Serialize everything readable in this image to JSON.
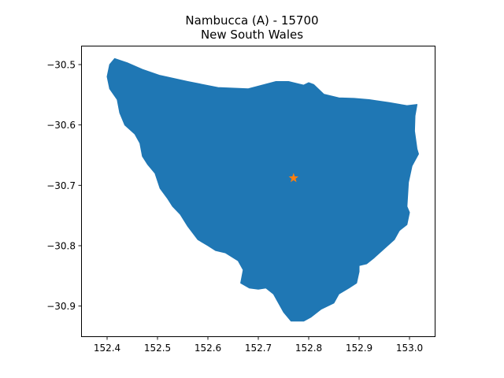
{
  "title": {
    "line1": "Nambucca (A) - 15700",
    "line2": "New South Wales"
  },
  "colors": {
    "region_fill": "#1f77b4",
    "centroid_marker": "#ff7f0e",
    "axes": "#000000"
  },
  "chart_data": {
    "type": "map",
    "xlim": [
      152.35,
      153.05
    ],
    "ylim": [
      -30.95,
      -30.47
    ],
    "x_ticks": [
      152.4,
      152.5,
      152.6,
      152.7,
      152.8,
      152.9,
      153.0
    ],
    "x_tick_labels": [
      "152.4",
      "152.5",
      "152.6",
      "152.7",
      "152.8",
      "152.9",
      "153.0"
    ],
    "y_ticks": [
      -30.5,
      -30.6,
      -30.7,
      -30.8,
      -30.9
    ],
    "y_tick_labels": [
      "−30.5",
      "−30.6",
      "−30.7",
      "−30.8",
      "−30.9"
    ],
    "grid": false,
    "centroid": {
      "lon": 152.77,
      "lat": -30.688,
      "marker": "star"
    },
    "boundary": [
      [
        152.405,
        -30.5
      ],
      [
        152.415,
        -30.49
      ],
      [
        152.44,
        -30.497
      ],
      [
        152.47,
        -30.508
      ],
      [
        152.505,
        -30.518
      ],
      [
        152.56,
        -30.528
      ],
      [
        152.62,
        -30.538
      ],
      [
        152.68,
        -30.54
      ],
      [
        152.735,
        -30.528
      ],
      [
        152.76,
        -30.528
      ],
      [
        152.79,
        -30.534
      ],
      [
        152.8,
        -30.53
      ],
      [
        152.81,
        -30.533
      ],
      [
        152.83,
        -30.549
      ],
      [
        152.86,
        -30.555
      ],
      [
        152.89,
        -30.556
      ],
      [
        152.92,
        -30.558
      ],
      [
        152.96,
        -30.563
      ],
      [
        152.995,
        -30.568
      ],
      [
        153.015,
        -30.566
      ],
      [
        153.011,
        -30.585
      ],
      [
        153.01,
        -30.61
      ],
      [
        153.015,
        -30.64
      ],
      [
        153.018,
        -30.648
      ],
      [
        153.005,
        -30.668
      ],
      [
        152.998,
        -30.695
      ],
      [
        152.995,
        -30.735
      ],
      [
        153.0,
        -30.745
      ],
      [
        152.995,
        -30.765
      ],
      [
        152.98,
        -30.775
      ],
      [
        152.97,
        -30.79
      ],
      [
        152.95,
        -30.805
      ],
      [
        152.93,
        -30.82
      ],
      [
        152.915,
        -30.83
      ],
      [
        152.9,
        -30.833
      ],
      [
        152.9,
        -30.843
      ],
      [
        152.895,
        -30.862
      ],
      [
        152.88,
        -30.87
      ],
      [
        152.86,
        -30.88
      ],
      [
        152.85,
        -30.895
      ],
      [
        152.825,
        -30.905
      ],
      [
        152.805,
        -30.918
      ],
      [
        152.79,
        -30.925
      ],
      [
        152.765,
        -30.925
      ],
      [
        152.75,
        -30.91
      ],
      [
        152.74,
        -30.895
      ],
      [
        152.73,
        -30.88
      ],
      [
        152.715,
        -30.87
      ],
      [
        152.7,
        -30.872
      ],
      [
        152.682,
        -30.87
      ],
      [
        152.665,
        -30.862
      ],
      [
        152.67,
        -30.84
      ],
      [
        152.66,
        -30.825
      ],
      [
        152.635,
        -30.812
      ],
      [
        152.615,
        -30.808
      ],
      [
        152.6,
        -30.8
      ],
      [
        152.58,
        -30.79
      ],
      [
        152.56,
        -30.768
      ],
      [
        152.545,
        -30.748
      ],
      [
        152.53,
        -30.735
      ],
      [
        152.52,
        -30.722
      ],
      [
        152.505,
        -30.705
      ],
      [
        152.495,
        -30.68
      ],
      [
        152.48,
        -30.665
      ],
      [
        152.47,
        -30.652
      ],
      [
        152.465,
        -30.63
      ],
      [
        152.455,
        -30.615
      ],
      [
        152.435,
        -30.6
      ],
      [
        152.425,
        -30.58
      ],
      [
        152.42,
        -30.558
      ],
      [
        152.405,
        -30.54
      ],
      [
        152.4,
        -30.52
      ]
    ]
  }
}
